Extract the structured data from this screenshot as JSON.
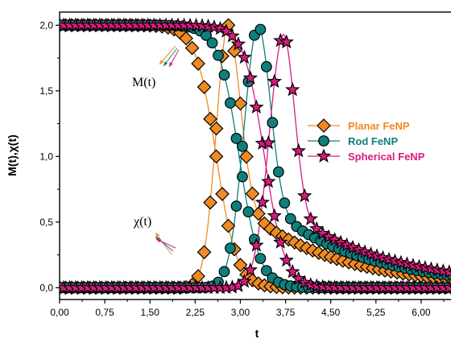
{
  "chart_data": {
    "type": "line",
    "xlabel": "t",
    "ylabel": "M(t),χ(t)",
    "xlim": [
      0,
      6.95
    ],
    "ylim": [
      -0.09,
      2.1
    ],
    "x_ticks": [
      "0,00",
      "0,75",
      "1,50",
      "2,25",
      "3,00",
      "3,75",
      "4,50",
      "5,25",
      "6,00",
      "6,75"
    ],
    "y_ticks": [
      "0,0",
      "0,5",
      "1,0",
      "1,5",
      "2,0"
    ],
    "x_tick_values": [
      0,
      0.75,
      1.5,
      2.25,
      3.0,
      3.75,
      4.5,
      5.25,
      6.0,
      6.75
    ],
    "y_tick_values": [
      0,
      0.5,
      1.0,
      1.5,
      2.0
    ],
    "legend_position": "center-right",
    "annotations": [
      {
        "text": "M(t)"
      },
      {
        "text": "χ(t)"
      }
    ],
    "series": [
      {
        "name": "Planar FeNP",
        "color": "#f08a24",
        "marker": "diamond",
        "magnetization": {
          "t0": 2.6,
          "width": 0.17
        },
        "susceptibility": {
          "peak_t": 2.8,
          "peak": 2.0,
          "rise_sigma": 0.2,
          "fall_sigma": 0.2,
          "tail_amp": 0.7,
          "tail_decay": 1.55
        }
      },
      {
        "name": "Rod FeNP",
        "color": "#0f7f7d",
        "marker": "circle",
        "magnetization": {
          "t0": 2.98,
          "width": 0.17
        },
        "susceptibility": {
          "peak_t": 3.3,
          "peak": 2.0,
          "rise_sigma": 0.24,
          "fall_sigma": 0.2,
          "tail_amp": 0.68,
          "tail_decay": 1.6
        }
      },
      {
        "name": "Spherical FeNP",
        "color": "#d81b7f",
        "marker": "star",
        "magnetization": {
          "t0": 3.4,
          "width": 0.17
        },
        "susceptibility": {
          "peak_t": 3.72,
          "peak": 1.93,
          "rise_sigma": 0.24,
          "fall_sigma": 0.18,
          "tail_amp": 0.6,
          "tail_decay": 1.7
        }
      }
    ]
  }
}
